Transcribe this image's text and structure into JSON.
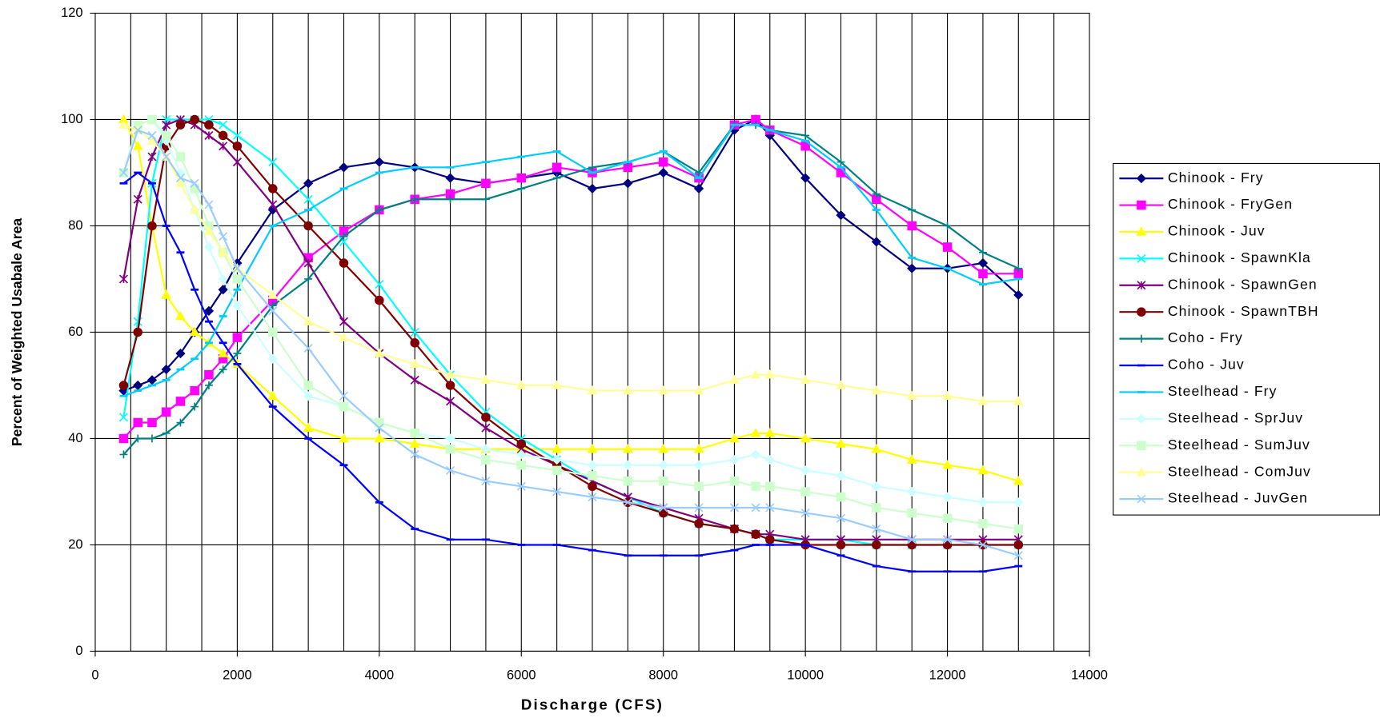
{
  "chart_data": {
    "type": "line",
    "x_label": "Discharge (CFS)",
    "y_label": "Percent of Weighted Usabale Area",
    "xlim": [
      0,
      14000
    ],
    "xticks": [
      0,
      2000,
      4000,
      6000,
      8000,
      10000,
      12000,
      14000
    ],
    "ylim": [
      0,
      120
    ],
    "yticks": [
      0,
      20,
      40,
      60,
      80,
      100,
      120
    ],
    "x_grid_step": 500,
    "grid": true,
    "legend": "right",
    "x": [
      400,
      600,
      800,
      1000,
      1200,
      1400,
      1600,
      1800,
      2000,
      2500,
      3000,
      3500,
      4000,
      4500,
      5000,
      5500,
      6000,
      6500,
      7000,
      7500,
      8000,
      8500,
      9000,
      9300,
      9500,
      10000,
      10500,
      11000,
      11500,
      12000,
      12500,
      13000
    ],
    "series": [
      {
        "name": "Chinook - Fry",
        "color": "#000080",
        "marker": "diamond",
        "values": [
          49,
          50,
          51,
          53,
          56,
          60,
          64,
          68,
          73,
          83,
          88,
          91,
          92,
          91,
          89,
          88,
          89,
          90,
          87,
          88,
          90,
          87,
          98,
          100,
          97,
          89,
          82,
          77,
          72,
          72,
          73,
          67
        ]
      },
      {
        "name": "Chinook - FryGen",
        "color": "#ff00ff",
        "marker": "square",
        "values": [
          40,
          43,
          43,
          45,
          47,
          49,
          52,
          55,
          59,
          66,
          74,
          79,
          83,
          85,
          86,
          88,
          89,
          91,
          90,
          91,
          92,
          89,
          99,
          100,
          98,
          95,
          90,
          85,
          80,
          76,
          71,
          71
        ]
      },
      {
        "name": "Chinook - Juv",
        "color": "#ffff00",
        "marker": "triangle",
        "values": [
          100,
          95,
          80,
          67,
          63,
          60,
          58,
          56,
          54,
          48,
          42,
          40,
          40,
          39,
          38,
          38,
          38,
          38,
          38,
          38,
          38,
          38,
          40,
          41,
          41,
          40,
          39,
          38,
          36,
          35,
          34,
          32
        ]
      },
      {
        "name": "Chinook - SpawnKla",
        "color": "#00ffff",
        "marker": "x",
        "values": [
          44,
          62,
          88,
          100,
          100,
          100,
          100,
          99,
          97,
          92,
          85,
          77,
          69,
          60,
          52,
          45,
          40,
          36,
          32,
          29,
          26,
          24,
          23,
          22,
          21,
          21,
          21,
          20,
          20,
          20,
          20,
          20
        ]
      },
      {
        "name": "Chinook - SpawnGen",
        "color": "#800080",
        "marker": "star",
        "values": [
          70,
          85,
          93,
          99,
          100,
          99,
          97,
          95,
          92,
          84,
          73,
          62,
          56,
          51,
          47,
          42,
          38,
          35,
          32,
          29,
          27,
          25,
          23,
          22,
          22,
          21,
          21,
          21,
          21,
          21,
          21,
          21
        ]
      },
      {
        "name": "Chinook - SpawnTBH",
        "color": "#800000",
        "marker": "circle",
        "values": [
          50,
          60,
          80,
          95,
          99,
          100,
          99,
          97,
          95,
          87,
          80,
          73,
          66,
          58,
          50,
          44,
          39,
          35,
          31,
          28,
          26,
          24,
          23,
          22,
          21,
          20,
          20,
          20,
          20,
          20,
          20,
          20
        ]
      },
      {
        "name": "Coho - Fry",
        "color": "#008080",
        "marker": "plus",
        "values": [
          37,
          40,
          40,
          41,
          43,
          46,
          50,
          53,
          56,
          65,
          70,
          78,
          83,
          85,
          85,
          85,
          87,
          89,
          91,
          92,
          94,
          90,
          99,
          99,
          98,
          97,
          92,
          86,
          83,
          80,
          75,
          72
        ]
      },
      {
        "name": "Coho - Juv",
        "color": "#0000ff",
        "marker": "dash",
        "values": [
          88,
          90,
          88,
          80,
          75,
          68,
          62,
          58,
          54,
          46,
          40,
          35,
          28,
          23,
          21,
          21,
          20,
          20,
          19,
          18,
          18,
          18,
          19,
          20,
          20,
          20,
          18,
          16,
          15,
          15,
          15,
          16
        ]
      },
      {
        "name": "Steelhead - Fry",
        "color": "#00ccff",
        "marker": "dash",
        "values": [
          48,
          49,
          50,
          51,
          53,
          55,
          58,
          63,
          68,
          80,
          83,
          87,
          90,
          91,
          91,
          92,
          93,
          94,
          90,
          92,
          94,
          89,
          99,
          99,
          98,
          96,
          91,
          83,
          74,
          72,
          69,
          70
        ]
      },
      {
        "name": "Steelhead - SprJuv",
        "color": "#ccffff",
        "marker": "diamond",
        "values": [
          90,
          99,
          100,
          96,
          90,
          83,
          76,
          70,
          65,
          55,
          48,
          46,
          43,
          41,
          40,
          38,
          37,
          36,
          35,
          35,
          35,
          35,
          36,
          37,
          36,
          34,
          33,
          31,
          30,
          29,
          28,
          28
        ]
      },
      {
        "name": "Steelhead - SumJuv",
        "color": "#ccffcc",
        "marker": "square",
        "values": [
          90,
          99,
          100,
          97,
          93,
          87,
          80,
          75,
          70,
          60,
          50,
          46,
          43,
          41,
          38,
          36,
          35,
          34,
          33,
          32,
          32,
          31,
          32,
          31,
          31,
          30,
          29,
          27,
          26,
          25,
          24,
          23
        ]
      },
      {
        "name": "Steelhead - ComJuv",
        "color": "#ffff99",
        "marker": "triangle",
        "values": [
          99,
          98,
          96,
          93,
          88,
          83,
          79,
          75,
          72,
          67,
          62,
          59,
          56,
          54,
          52,
          51,
          50,
          50,
          49,
          49,
          49,
          49,
          51,
          52,
          52,
          51,
          50,
          49,
          48,
          48,
          47,
          47
        ]
      },
      {
        "name": "Steelhead - JuvGen",
        "color": "#99ccff",
        "marker": "x",
        "values": [
          90,
          98,
          97,
          93,
          89,
          88,
          84,
          78,
          72,
          64,
          57,
          48,
          42,
          37,
          34,
          32,
          31,
          30,
          29,
          28,
          27,
          27,
          27,
          27,
          27,
          26,
          25,
          23,
          21,
          21,
          20,
          18
        ]
      }
    ]
  }
}
